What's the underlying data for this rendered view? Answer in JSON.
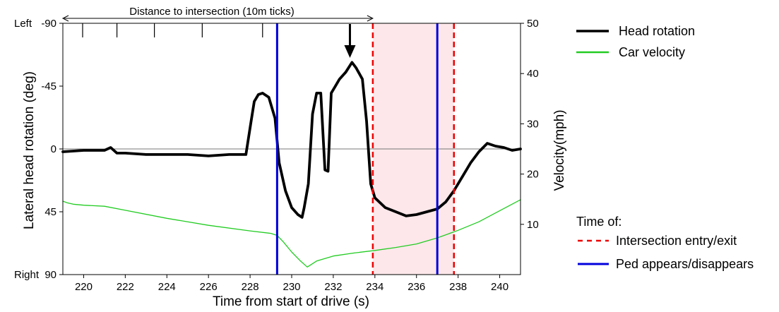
{
  "chart_data": {
    "type": "line",
    "title": "",
    "xlabel": "Time from start of drive (s)",
    "ylabel_left": "Lateral head rotation (deg)",
    "ylabel_right": "Velocity(mph)",
    "xlim": [
      219,
      241
    ],
    "ylim_left": [
      90,
      -90
    ],
    "ylim_right": [
      0,
      50
    ],
    "x_ticks": [
      220,
      222,
      224,
      226,
      228,
      230,
      232,
      234,
      236,
      238,
      240
    ],
    "x_tick_labels": [
      "220",
      "222",
      "224",
      "226",
      "228",
      "230",
      "232",
      "234",
      "236",
      "238",
      "240"
    ],
    "y_left_ticks": [
      -90,
      -45,
      0,
      45,
      90
    ],
    "y_left_tick_labels": [
      "-90",
      "-45",
      "0",
      "45",
      "90"
    ],
    "y_left_side_labels": {
      "top": "Left",
      "bottom": "Right"
    },
    "y_right_ticks": [
      10,
      20,
      30,
      40,
      50
    ],
    "y_right_tick_labels": [
      "10",
      "20",
      "30",
      "40",
      "50"
    ],
    "grid": false,
    "legend_position": "right",
    "annotations": {
      "distance_label": "Distance to intersection (10m ticks)",
      "distance_tick_x": [
        219.95,
        221.6,
        223.4,
        225.7,
        228.6
      ],
      "arrow_x": 232.8,
      "zero_line": 0
    },
    "series": [
      {
        "name": "Head rotation",
        "axis": "left",
        "color": "#000000",
        "x": [
          219.0,
          220.0,
          221.0,
          221.3,
          221.6,
          222.0,
          223.0,
          224.0,
          225.0,
          226.0,
          227.0,
          227.8,
          228.05,
          228.2,
          228.4,
          228.6,
          228.9,
          229.2,
          229.4,
          229.7,
          230.0,
          230.3,
          230.5,
          230.6,
          230.8,
          231.0,
          231.2,
          231.4,
          231.6,
          231.75,
          231.9,
          232.1,
          232.3,
          232.6,
          232.9,
          233.1,
          233.4,
          233.6,
          233.8,
          234.0,
          234.5,
          235.0,
          235.5,
          236.0,
          236.5,
          237.0,
          237.4,
          237.8,
          238.2,
          238.6,
          239.0,
          239.4,
          239.8,
          240.2,
          240.6,
          241.0
        ],
        "y": [
          2,
          1,
          1,
          -1,
          3,
          3,
          4,
          4,
          4,
          5,
          4,
          4,
          -20,
          -34,
          -39,
          -40,
          -37,
          -22,
          10,
          30,
          42,
          47,
          49,
          42,
          25,
          -25,
          -40,
          -40,
          15,
          16,
          -40,
          -45,
          -50,
          -55,
          -62,
          -58,
          -50,
          -20,
          25,
          35,
          42,
          45,
          48,
          47,
          45,
          43,
          38,
          30,
          20,
          10,
          2,
          -4,
          -2,
          -1,
          1,
          0
        ]
      },
      {
        "name": "Car velocity",
        "axis": "right",
        "color": "#22cc22",
        "x": [
          219.0,
          219.2,
          219.5,
          220.0,
          221.0,
          222.0,
          224.0,
          226.0,
          228.0,
          229.0,
          229.3,
          229.6,
          230.0,
          230.4,
          230.75,
          231.2,
          232.0,
          233.0,
          234.0,
          235.0,
          236.0,
          237.0,
          238.0,
          239.0,
          240.0,
          241.0
        ],
        "y": [
          14.6,
          14.3,
          14.0,
          13.8,
          13.6,
          12.8,
          11.2,
          9.8,
          8.7,
          8.2,
          7.8,
          6.5,
          4.5,
          2.8,
          1.5,
          2.7,
          3.7,
          4.3,
          4.8,
          5.4,
          6.1,
          7.3,
          8.8,
          10.5,
          12.7,
          14.9
        ]
      }
    ],
    "vertical_lines": [
      {
        "x": 229.3,
        "color": "#0000dd",
        "style": "solid",
        "group": "Ped appears/disappears"
      },
      {
        "x": 237.0,
        "color": "#0000dd",
        "style": "solid",
        "group": "Ped appears/disappears"
      },
      {
        "x": 233.9,
        "color": "#ee0000",
        "style": "dashed",
        "group": "Intersection entry/exit"
      },
      {
        "x": 237.8,
        "color": "#ee0000",
        "style": "dashed",
        "group": "Intersection entry/exit"
      }
    ],
    "shaded_region": {
      "x": [
        233.9,
        237.8
      ],
      "color": "#fde7ea"
    },
    "legend": {
      "items": [
        {
          "label": "Head rotation",
          "color": "#000000",
          "style": "solid"
        },
        {
          "label": "Car velocity",
          "color": "#22cc22",
          "style": "solid"
        }
      ],
      "section_title": "Time of:",
      "section_items": [
        {
          "label": "Intersection entry/exit",
          "color": "#ee0000",
          "style": "dashed"
        },
        {
          "label": "Ped appears/disappears",
          "color": "#0000dd",
          "style": "solid"
        }
      ]
    }
  }
}
